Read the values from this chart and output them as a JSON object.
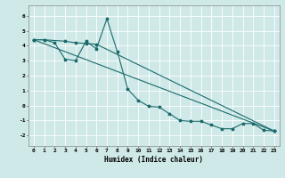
{
  "xlabel": "Humidex (Indice chaleur)",
  "ylabel": "",
  "bg_color": "#cfe8e8",
  "grid_color": "#ffffff",
  "line_color": "#1a6b6b",
  "xlim": [
    -0.5,
    23.5
  ],
  "ylim": [
    -2.7,
    6.7
  ],
  "yticks": [
    -2,
    -1,
    0,
    1,
    2,
    3,
    4,
    5,
    6
  ],
  "xticks": [
    0,
    1,
    2,
    3,
    4,
    5,
    6,
    7,
    8,
    9,
    10,
    11,
    12,
    13,
    14,
    15,
    16,
    17,
    18,
    19,
    20,
    21,
    22,
    23
  ],
  "line1_x": [
    0,
    1,
    2,
    3,
    4,
    5,
    6,
    7,
    8,
    9,
    10,
    11,
    12,
    13,
    14,
    15,
    16,
    17,
    18,
    19,
    20,
    21,
    22,
    23
  ],
  "line1_y": [
    4.4,
    4.4,
    4.2,
    3.1,
    3.0,
    4.3,
    3.8,
    5.8,
    3.6,
    1.1,
    0.35,
    -0.05,
    -0.1,
    -0.55,
    -1.0,
    -1.05,
    -1.05,
    -1.3,
    -1.55,
    -1.55,
    -1.2,
    -1.2,
    -1.65,
    -1.7
  ],
  "line2_x": [
    0,
    1,
    3,
    4,
    5,
    6,
    23
  ],
  "line2_y": [
    4.4,
    4.4,
    4.3,
    4.2,
    4.15,
    4.1,
    -1.7
  ],
  "line3_x": [
    0,
    23
  ],
  "line3_y": [
    4.4,
    -1.7
  ]
}
